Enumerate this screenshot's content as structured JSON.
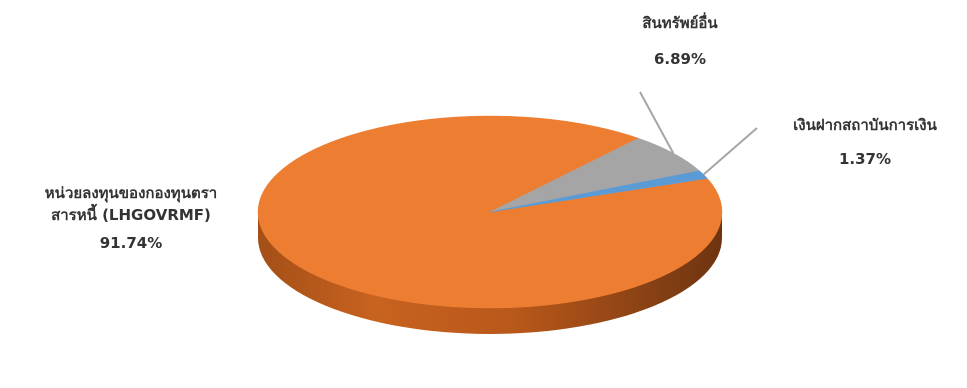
{
  "chart_data": {
    "type": "pie",
    "title": "",
    "slices": [
      {
        "label_lines": [
          "หน่วยลงทุนของกองทุนตรา",
          "สารหนี้ (LHGOVRMF)"
        ],
        "value": 91.74,
        "value_text": "91.74%",
        "color": "#ED7D31"
      },
      {
        "label_lines": [
          "สินทรัพย์อื่น"
        ],
        "value": 6.89,
        "value_text": "6.89%",
        "color": "#A5A5A5"
      },
      {
        "label_lines": [
          "เงินฝากสถาบันการเงิน"
        ],
        "value": 1.37,
        "value_text": "1.37%",
        "color": "#5B9BD5"
      }
    ],
    "style": "3d",
    "leader_line_color": "#A5A5A5"
  }
}
